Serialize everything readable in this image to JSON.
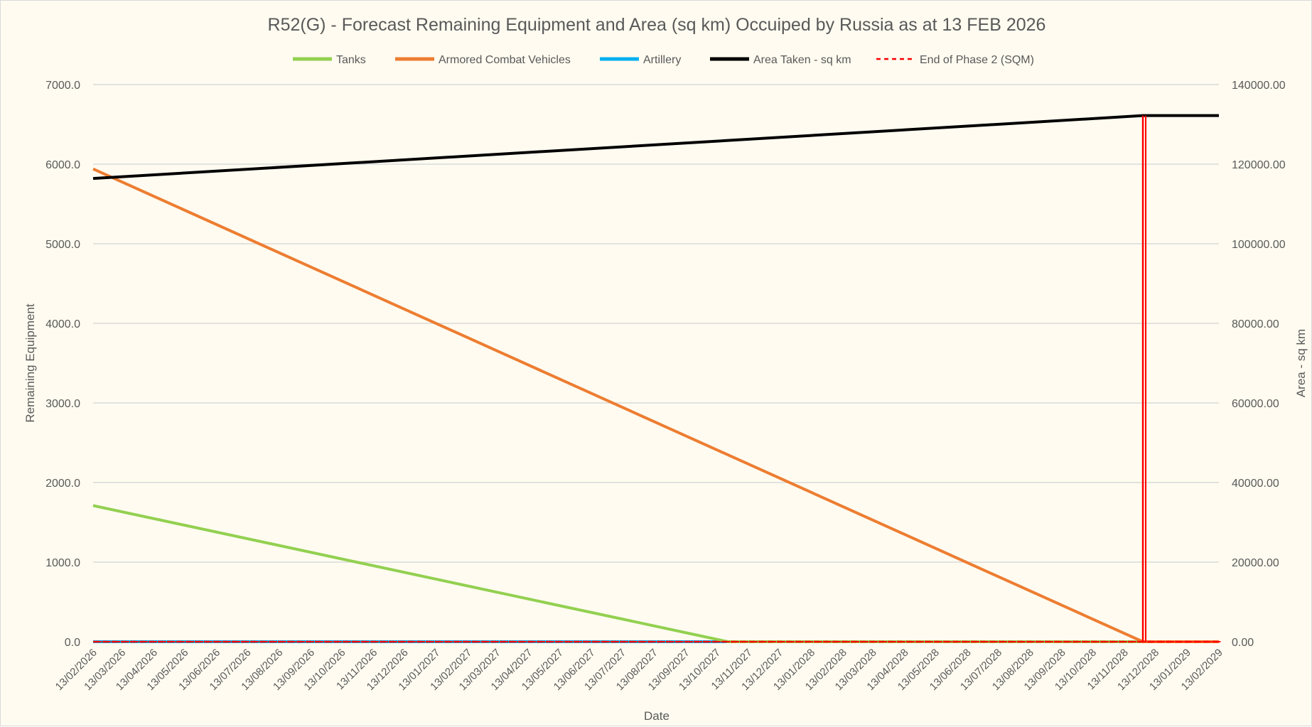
{
  "chart_data": {
    "type": "line",
    "title": "R52(G) - Forecast Remaining Equipment and Area (sq km) Occuiped by Russia as at 13 FEB 2026",
    "xlabel": "Date",
    "ylabel": "Remaining Equipment",
    "y2label": "Area - sq km",
    "ylim": [
      0,
      7000
    ],
    "y2lim": [
      0,
      140000
    ],
    "yticks": [
      "0.0",
      "1000.0",
      "2000.0",
      "3000.0",
      "4000.0",
      "5000.0",
      "6000.0",
      "7000.0"
    ],
    "y2ticks": [
      "0.00",
      "20000.00",
      "40000.00",
      "60000.00",
      "80000.00",
      "100000.00",
      "120000.00",
      "140000.00"
    ],
    "grid": true,
    "legend": "top",
    "categories": [
      "13/02/2026",
      "13/03/2026",
      "13/04/2026",
      "13/05/2026",
      "13/06/2026",
      "13/07/2026",
      "13/08/2026",
      "13/09/2026",
      "13/10/2026",
      "13/11/2026",
      "13/12/2026",
      "13/01/2027",
      "13/02/2027",
      "13/03/2027",
      "13/04/2027",
      "13/05/2027",
      "13/06/2027",
      "13/07/2027",
      "13/08/2027",
      "13/09/2027",
      "13/10/2027",
      "13/11/2027",
      "13/12/2027",
      "13/01/2028",
      "13/02/2028",
      "13/03/2028",
      "13/04/2028",
      "13/05/2028",
      "13/06/2028",
      "13/07/2028",
      "13/08/2028",
      "13/09/2028",
      "13/10/2028",
      "13/11/2028",
      "13/12/2028",
      "13/01/2029",
      "13/02/2029"
    ],
    "series": [
      {
        "name": "Tanks",
        "color": "#92d050",
        "axis": "left",
        "style": "solid",
        "points": [
          [
            "13/02/2026",
            1710
          ],
          [
            "24/10/2027",
            0
          ],
          [
            "13/02/2029",
            0
          ]
        ]
      },
      {
        "name": "Armored Combat Vehicles",
        "color": "#ed7d31",
        "axis": "left",
        "style": "solid",
        "points": [
          [
            "13/02/2026",
            5940
          ],
          [
            "01/12/2028",
            0
          ],
          [
            "13/02/2029",
            0
          ]
        ]
      },
      {
        "name": "Artillery",
        "color": "#00b0f0",
        "axis": "left",
        "style": "solid",
        "points": [
          [
            "13/02/2026",
            0
          ],
          [
            "13/02/2029",
            0
          ]
        ]
      },
      {
        "name": "Area Taken - sq km",
        "color": "#000000",
        "axis": "right",
        "style": "solid",
        "points": [
          [
            "13/02/2026",
            116400
          ],
          [
            "01/12/2028",
            132200
          ],
          [
            "13/02/2029",
            132200
          ]
        ]
      },
      {
        "name": "End of Phase 2 (SQM)",
        "color": "#ff0000",
        "axis": "right",
        "style": "dashed",
        "points": [
          [
            "13/02/2026",
            0
          ],
          [
            "01/12/2028",
            0
          ],
          [
            "01/12/2028",
            132200
          ],
          [
            "01/12/2028",
            0
          ],
          [
            "13/02/2029",
            0
          ]
        ]
      }
    ]
  }
}
